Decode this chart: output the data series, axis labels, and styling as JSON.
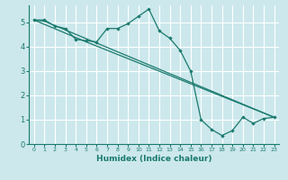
{
  "xlabel": "Humidex (Indice chaleur)",
  "bg_color": "#cce8ec",
  "line_color": "#1a7a6e",
  "grid_color": "#ffffff",
  "xlim": [
    -0.5,
    23.5
  ],
  "ylim": [
    0,
    5.7
  ],
  "yticks": [
    0,
    1,
    2,
    3,
    4,
    5
  ],
  "xticks": [
    0,
    1,
    2,
    3,
    4,
    5,
    6,
    7,
    8,
    9,
    10,
    11,
    12,
    13,
    14,
    15,
    16,
    17,
    18,
    19,
    20,
    21,
    22,
    23
  ],
  "line1_x": [
    0,
    1,
    2,
    3,
    4,
    5,
    6,
    7,
    8,
    9,
    10,
    11,
    12,
    13,
    14,
    15,
    16,
    17,
    18,
    19,
    20,
    21,
    22,
    23
  ],
  "line1_y": [
    5.1,
    5.1,
    4.85,
    4.75,
    4.3,
    4.25,
    4.2,
    4.75,
    4.75,
    4.95,
    5.25,
    5.55,
    4.65,
    4.35,
    3.85,
    3.0,
    1.0,
    0.6,
    0.35,
    0.55,
    1.1,
    0.85,
    1.05,
    1.1
  ],
  "line2_x": [
    0,
    1,
    23
  ],
  "line2_y": [
    5.1,
    5.05,
    1.1
  ],
  "line3_x": [
    0,
    5,
    23
  ],
  "line3_y": [
    5.1,
    4.2,
    1.1
  ]
}
